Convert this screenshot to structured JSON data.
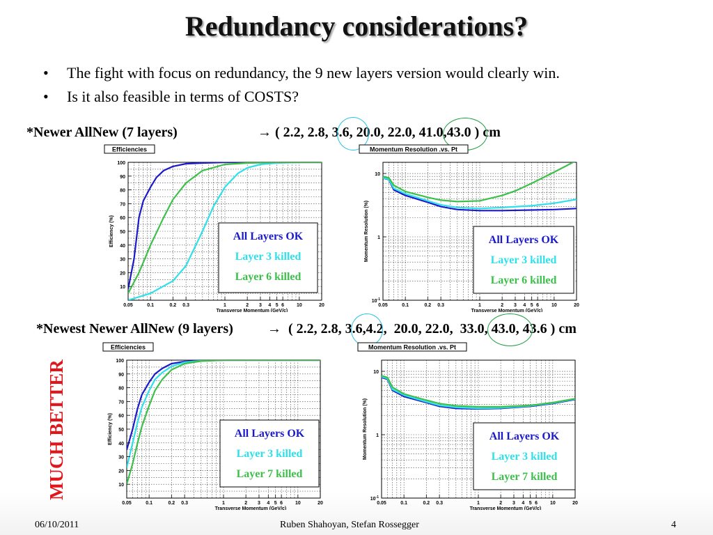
{
  "title": "Redundancy considerations?",
  "bullets": [
    "The fight with focus on redundancy, the 9 new layers version would clearly win.",
    "Is it also feasible in terms of COSTS?"
  ],
  "config_7": {
    "label": "*Newer AllNew (7 layers)",
    "arrow": "→",
    "open": "( 2.2, 2.8,",
    "v3": "3.6,",
    "mid": "20.0, 22.0,",
    "v6": "41.0,",
    "close": "43.0 ) cm"
  },
  "config_9": {
    "label": "*Newest Newer AllNew (9 layers)",
    "arrow": "→",
    "open": "( 2.2, 2.8,",
    "v3": "3.6,",
    "mid": "4.2,  20.0, 22.0,",
    "v7": "33.0,",
    "close": "43.0, 43.6 ) cm"
  },
  "side_label": "MUCH BETTER",
  "footer": {
    "date": "06/10/2011",
    "authors": "Ruben Shahoyan, Stefan Rossegger",
    "page": "4"
  },
  "colors": {
    "all_ok": "#1a1acc",
    "layer3": "#2ee0ea",
    "layer_other": "#3cc04a",
    "side_label": "#e0161b",
    "circle_blue": "#27c3e8",
    "circle_green": "#1e9e40"
  },
  "chart_data": [
    {
      "id": "eff7",
      "type": "line",
      "title": "Efficiencies",
      "xlabel": "Transverse Momentum (GeV/c)",
      "ylabel": "Efficiency (%)",
      "xscale": "log",
      "xlim": [
        0.05,
        20
      ],
      "ylim": [
        0,
        100
      ],
      "xticks": [
        "0.05",
        "0.1",
        "0.2",
        "0.3",
        "1",
        "2",
        "3",
        "4",
        "5",
        "6",
        "10",
        "20"
      ],
      "xtick_values": [
        0.05,
        0.1,
        0.2,
        0.3,
        1,
        2,
        3,
        4,
        5,
        6,
        10,
        20
      ],
      "yticks": [
        "10",
        "20",
        "30",
        "40",
        "50",
        "60",
        "70",
        "80",
        "90",
        "100"
      ],
      "ytick_values": [
        10,
        20,
        30,
        40,
        50,
        60,
        70,
        80,
        90,
        100
      ],
      "grid": true,
      "legend": [
        "All Layers OK",
        "Layer 3 killed",
        "Layer 6 killed"
      ],
      "legend_position": "bottom-right",
      "series": [
        {
          "name": "All Layers OK",
          "x": [
            0.05,
            0.06,
            0.07,
            0.08,
            0.1,
            0.12,
            0.15,
            0.2,
            0.3,
            0.5,
            1,
            20
          ],
          "y": [
            8,
            30,
            60,
            72,
            82,
            89,
            94,
            97,
            99,
            99.5,
            100,
            100
          ]
        },
        {
          "name": "Layer 3 killed",
          "x": [
            0.05,
            0.1,
            0.2,
            0.3,
            0.5,
            0.7,
            1,
            1.5,
            2,
            3,
            5,
            10,
            20
          ],
          "y": [
            0,
            5,
            14,
            25,
            50,
            68,
            82,
            92,
            96,
            98.5,
            99.5,
            100,
            100
          ]
        },
        {
          "name": "Layer 6 killed",
          "x": [
            0.05,
            0.07,
            0.1,
            0.15,
            0.2,
            0.3,
            0.5,
            1,
            2,
            5,
            20
          ],
          "y": [
            5,
            20,
            40,
            60,
            73,
            85,
            94,
            98.5,
            99.5,
            100,
            100
          ]
        }
      ]
    },
    {
      "id": "res7",
      "type": "line",
      "title": "Momentum Resolution .vs. Pt",
      "xlabel": "Transverse Momentum (GeV/c)",
      "ylabel": "Momentum Resolution (%)",
      "xscale": "log",
      "yscale": "log",
      "xlim": [
        0.05,
        20
      ],
      "ylim": [
        0.1,
        15
      ],
      "xticks": [
        "0.05",
        "0.1",
        "0.2",
        "0.3",
        "1",
        "2",
        "3",
        "4",
        "5",
        "6",
        "10",
        "20"
      ],
      "xtick_values": [
        0.05,
        0.1,
        0.2,
        0.3,
        1,
        2,
        3,
        4,
        5,
        6,
        10,
        20
      ],
      "yticks": [
        "10-1",
        "1",
        "10"
      ],
      "ytick_values": [
        0.1,
        1,
        10
      ],
      "grid": true,
      "legend": [
        "All Layers OK",
        "Layer 3 killed",
        "Layer 6 killed"
      ],
      "legend_position": "bottom-right",
      "series": [
        {
          "name": "All Layers OK",
          "x": [
            0.05,
            0.06,
            0.07,
            0.1,
            0.2,
            0.3,
            0.5,
            1,
            2,
            5,
            10,
            20
          ],
          "y": [
            8.5,
            8,
            5.5,
            4.5,
            3.5,
            3.0,
            2.7,
            2.6,
            2.6,
            2.65,
            2.7,
            2.8
          ]
        },
        {
          "name": "Layer 3 killed",
          "x": [
            0.05,
            0.06,
            0.07,
            0.1,
            0.2,
            0.3,
            0.5,
            1,
            2,
            5,
            10,
            20
          ],
          "y": [
            8.5,
            8.1,
            5.8,
            4.8,
            3.7,
            3.2,
            2.9,
            2.8,
            2.9,
            3.1,
            3.4,
            3.9
          ]
        },
        {
          "name": "Layer 6 killed",
          "x": [
            0.05,
            0.06,
            0.07,
            0.1,
            0.2,
            0.3,
            0.5,
            1,
            2,
            3,
            5,
            10,
            20
          ],
          "y": [
            9,
            8.5,
            6.5,
            5.2,
            4.2,
            3.8,
            3.6,
            3.7,
            4.5,
            5.3,
            7,
            10.5,
            16
          ]
        }
      ]
    },
    {
      "id": "eff9",
      "type": "line",
      "title": "Efficiencies",
      "xlabel": "Transverse Momentum (GeV/c)",
      "ylabel": "Efficiency (%)",
      "xscale": "log",
      "xlim": [
        0.05,
        20
      ],
      "ylim": [
        0,
        100
      ],
      "xticks": [
        "0.05",
        "0.1",
        "0.2",
        "0.3",
        "1",
        "2",
        "3",
        "4",
        "5",
        "6",
        "10",
        "20"
      ],
      "xtick_values": [
        0.05,
        0.1,
        0.2,
        0.3,
        1,
        2,
        3,
        4,
        5,
        6,
        10,
        20
      ],
      "yticks": [
        "10",
        "20",
        "30",
        "40",
        "50",
        "60",
        "70",
        "80",
        "90",
        "100"
      ],
      "ytick_values": [
        10,
        20,
        30,
        40,
        50,
        60,
        70,
        80,
        90,
        100
      ],
      "grid": true,
      "legend": [
        "All Layers OK",
        "Layer 3 killed",
        "Layer 7 killed"
      ],
      "legend_position": "bottom-right",
      "series": [
        {
          "name": "All Layers OK",
          "x": [
            0.05,
            0.06,
            0.07,
            0.08,
            0.1,
            0.12,
            0.15,
            0.2,
            0.3,
            0.5,
            1,
            20
          ],
          "y": [
            35,
            50,
            65,
            75,
            84,
            90,
            94,
            97.5,
            99,
            99.7,
            100,
            100
          ]
        },
        {
          "name": "Layer 3 killed",
          "x": [
            0.05,
            0.06,
            0.07,
            0.08,
            0.1,
            0.12,
            0.15,
            0.2,
            0.3,
            0.5,
            1,
            20
          ],
          "y": [
            22,
            40,
            55,
            66,
            78,
            86,
            91,
            95.5,
            98.5,
            99.5,
            100,
            100
          ]
        },
        {
          "name": "Layer 7 killed",
          "x": [
            0.05,
            0.06,
            0.07,
            0.08,
            0.1,
            0.12,
            0.15,
            0.2,
            0.3,
            0.5,
            1,
            20
          ],
          "y": [
            10,
            25,
            40,
            52,
            67,
            78,
            86,
            93,
            97.5,
            99.3,
            100,
            100
          ]
        }
      ]
    },
    {
      "id": "res9",
      "type": "line",
      "title": "Momentum Resolution .vs. Pt",
      "xlabel": "Transverse Momentum (GeV/c)",
      "ylabel": "Momentum Resolution (%)",
      "xscale": "log",
      "yscale": "log",
      "xlim": [
        0.05,
        20
      ],
      "ylim": [
        0.1,
        15
      ],
      "xticks": [
        "0.05",
        "0.1",
        "0.2",
        "0.3",
        "1",
        "2",
        "3",
        "4",
        "5",
        "6",
        "10",
        "20"
      ],
      "xtick_values": [
        0.05,
        0.1,
        0.2,
        0.3,
        1,
        2,
        3,
        4,
        5,
        6,
        10,
        20
      ],
      "yticks": [
        "10-1",
        "1",
        "10"
      ],
      "ytick_values": [
        0.1,
        1,
        10
      ],
      "grid": true,
      "legend": [
        "All Layers OK",
        "Layer 3 killed",
        "Layer 7 killed"
      ],
      "legend_position": "bottom-right",
      "series": [
        {
          "name": "All Layers OK",
          "x": [
            0.05,
            0.06,
            0.07,
            0.1,
            0.2,
            0.3,
            0.5,
            1,
            2,
            5,
            10,
            20
          ],
          "y": [
            8,
            7.5,
            5,
            4,
            3.2,
            2.8,
            2.6,
            2.55,
            2.6,
            2.8,
            3.1,
            3.6
          ]
        },
        {
          "name": "Layer 3 killed",
          "x": [
            0.05,
            0.06,
            0.07,
            0.1,
            0.2,
            0.3,
            0.5,
            1,
            2,
            5,
            10,
            20
          ],
          "y": [
            8.2,
            7.7,
            5.2,
            4.2,
            3.3,
            2.9,
            2.7,
            2.6,
            2.65,
            2.85,
            3.15,
            3.65
          ]
        },
        {
          "name": "Layer 7 killed",
          "x": [
            0.05,
            0.06,
            0.07,
            0.1,
            0.2,
            0.3,
            0.5,
            1,
            2,
            5,
            10,
            20
          ],
          "y": [
            8.5,
            8,
            5.6,
            4.4,
            3.5,
            3.1,
            2.85,
            2.75,
            2.75,
            2.9,
            3.2,
            3.7
          ]
        }
      ]
    }
  ]
}
